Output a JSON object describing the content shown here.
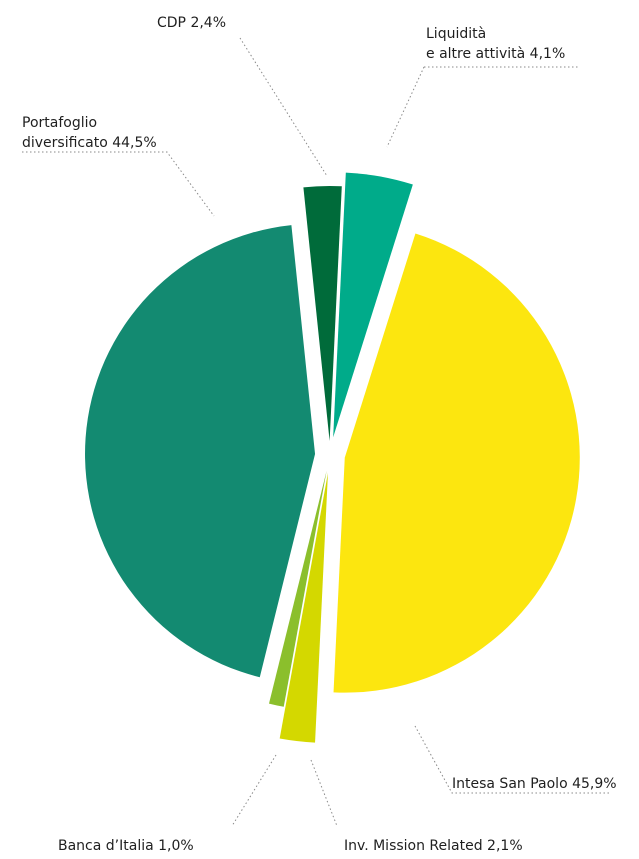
{
  "chart_data": {
    "type": "pie",
    "slices": [
      {
        "label": "Intesa San Paolo",
        "value": 45.9,
        "value_label": "45,9%",
        "color": "#fce60f"
      },
      {
        "label": "Inv. Mission Related",
        "value": 2.1,
        "value_label": "2,1%",
        "color": "#d4d800"
      },
      {
        "label": "Banca d'Italia",
        "value": 1.0,
        "value_label": "1,0%",
        "color": "#8bbf2c"
      },
      {
        "label": "Portafoglio diversificato",
        "value": 44.5,
        "value_label": "44,5%",
        "color": "#138a71"
      },
      {
        "label": "CDP",
        "value": 2.4,
        "value_label": "2,4%",
        "color": "#006b3a"
      },
      {
        "label": "Liquidità e altre attività",
        "value": 4.1,
        "value_label": "4,1%",
        "color": "#00ab8a"
      }
    ]
  },
  "labels": {
    "cdp": "CDP 2,4%",
    "liquidita_line1": "Liquidità",
    "liquidita_line2": "e altre attività 4,1%",
    "portafoglio_line1": "Portafoglio",
    "portafoglio_line2": "diversificato 44,5%",
    "intesa": "Intesa San Paolo 45,9%",
    "banca": "Banca d’Italia 1,0%",
    "inv": "Inv. Mission Related 2,1%"
  }
}
